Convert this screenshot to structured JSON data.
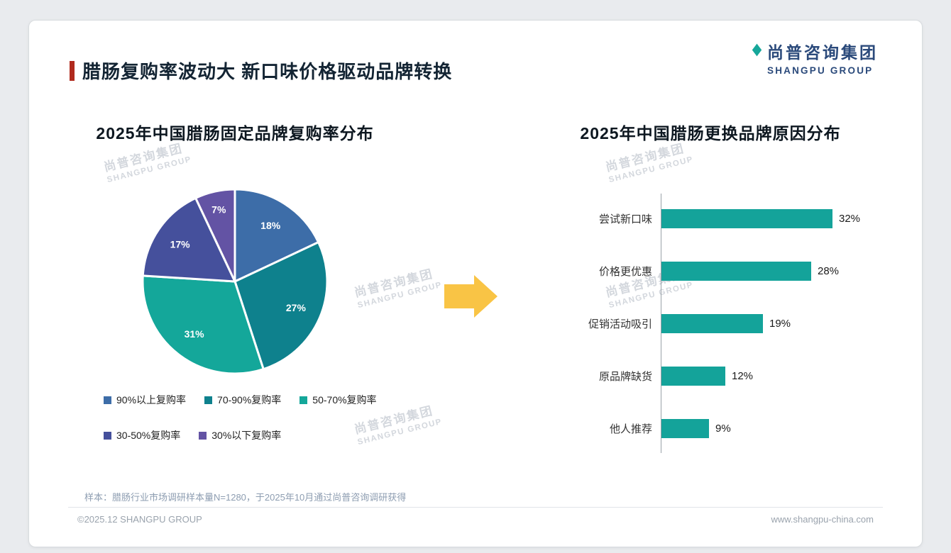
{
  "page": {
    "title": "腊肠复购率波动大 新口味价格驱动品牌转换",
    "logo": {
      "cn": "尚普咨询集团",
      "en": "SHANGPU GROUP"
    },
    "watermark": {
      "cn": "尚普咨询集团",
      "en": "SHANGPU GROUP"
    },
    "footnote": "样本：腊肠行业市场调研样本量N=1280，于2025年10月通过尚普咨询调研获得",
    "copyright": "©2025.12 SHANGPU GROUP",
    "website": "www.shangpu-china.com",
    "colors": {
      "arrow": "#F9C445",
      "accent_red": "#B02A1E",
      "brand_navy": "#2B4A7B"
    }
  },
  "chart_data": [
    {
      "type": "pie",
      "title": "2025年中国腊肠固定品牌复购率分布",
      "labels": [
        "90%以上复购率",
        "70-90%复购率",
        "50-70%复购率",
        "30-50%复购率",
        "30%以下复购率"
      ],
      "values": [
        18,
        27,
        31,
        17,
        7
      ],
      "value_labels": [
        "18%",
        "27%",
        "31%",
        "17%",
        "7%"
      ],
      "colors": [
        "#3D6DA8",
        "#0E818D",
        "#14A79A",
        "#45509C",
        "#6353A4"
      ],
      "legend_position": "bottom",
      "start_angle_deg": -90,
      "direction": "clockwise"
    },
    {
      "type": "bar",
      "title": "2025年中国腊肠更换品牌原因分布",
      "orientation": "horizontal",
      "categories": [
        "尝试新口味",
        "价格更优惠",
        "促销活动吸引",
        "原品牌缺货",
        "他人推荐"
      ],
      "values": [
        32,
        28,
        19,
        12,
        9
      ],
      "value_labels": [
        "32%",
        "28%",
        "19%",
        "12%",
        "9%"
      ],
      "bar_color": "#14A39A",
      "xlim": [
        0,
        35
      ],
      "grid": false
    }
  ]
}
